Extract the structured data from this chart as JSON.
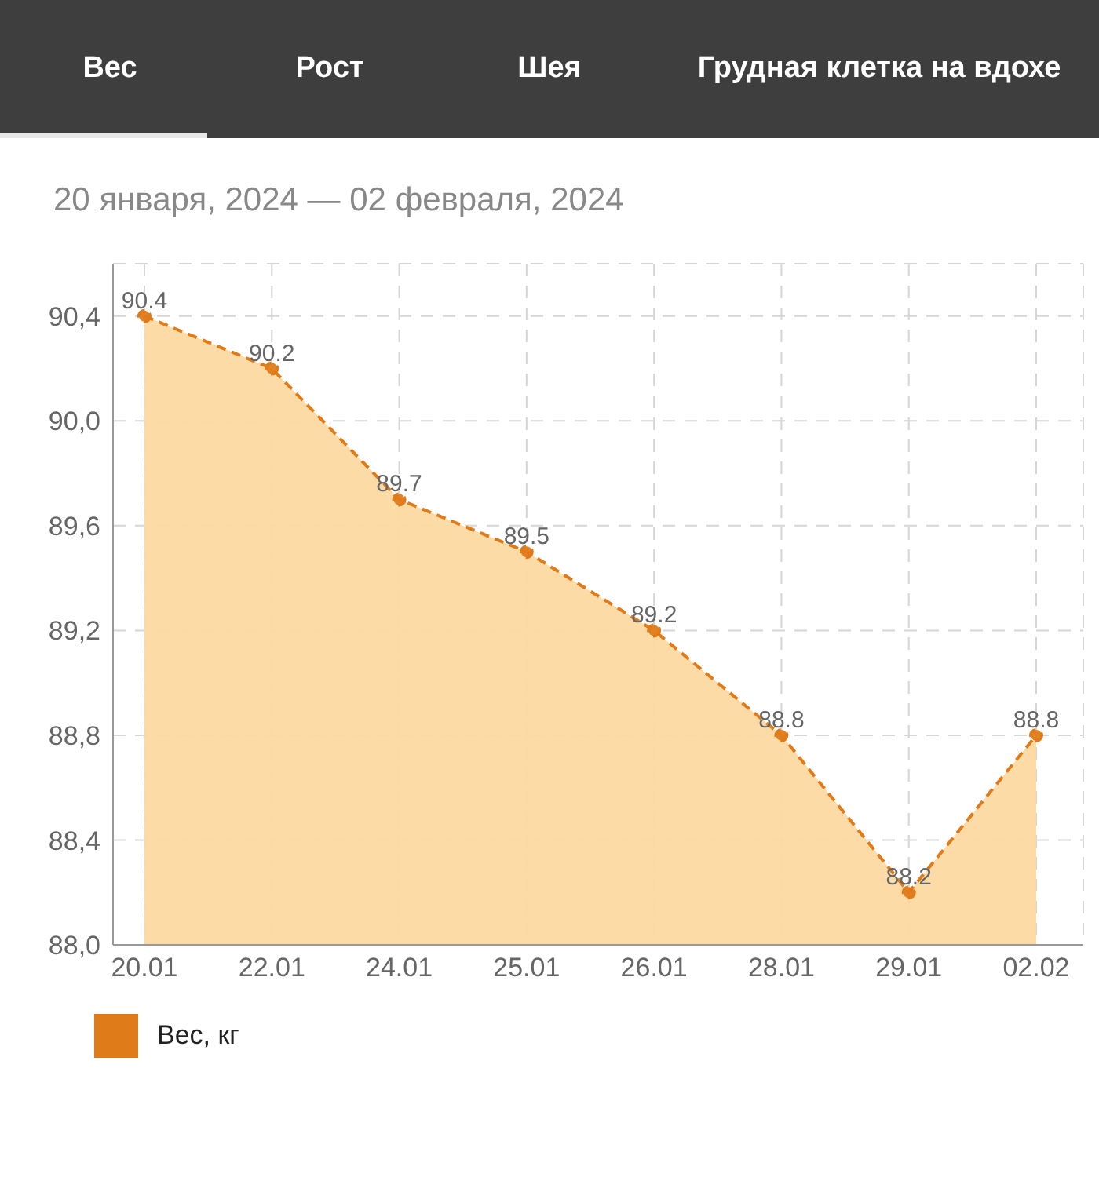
{
  "chart_data": {
    "type": "area",
    "subtitle": "20 января, 2024 — 02 февраля, 2024",
    "annotations": [
      "Вес",
      "Рост",
      "Шея",
      "Грудная клетка на вдохе"
    ],
    "categories": [
      "20.01",
      "22.01",
      "24.01",
      "25.01",
      "26.01",
      "28.01",
      "29.01",
      "02.02"
    ],
    "series": [
      {
        "name": "Вес, кг",
        "color": "#e07b1a",
        "values": [
          90.4,
          90.2,
          89.7,
          89.5,
          89.2,
          88.8,
          88.2,
          88.8
        ]
      }
    ],
    "ylim": [
      88.0,
      90.6
    ],
    "yticks": [
      {
        "value": 88.0,
        "label": "88,0"
      },
      {
        "value": 88.4,
        "label": "88,4"
      },
      {
        "value": 88.8,
        "label": "88,8"
      },
      {
        "value": 89.2,
        "label": "89,2"
      },
      {
        "value": 89.6,
        "label": "89,6"
      },
      {
        "value": 90.0,
        "label": "90,0"
      },
      {
        "value": 90.4,
        "label": "90,4"
      }
    ],
    "grid": true,
    "legend": "bottom left",
    "marker": "circle",
    "line_style": "dashed",
    "data_labels": true
  }
}
